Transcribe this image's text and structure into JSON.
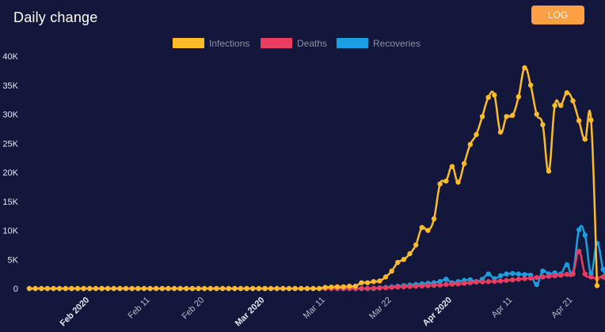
{
  "header": {
    "title": "Daily change",
    "log_button_label": "LOG"
  },
  "chart_data": {
    "type": "line",
    "x_start": "2020-01-22",
    "xlabel": "",
    "ylabel": "",
    "ylim": [
      0,
      40000
    ],
    "y_ticks": [
      0,
      5000,
      10000,
      15000,
      20000,
      25000,
      30000,
      35000,
      40000
    ],
    "y_tick_labels": [
      "0",
      "5K",
      "10K",
      "15K",
      "20K",
      "25K",
      "30K",
      "35K",
      "40K"
    ],
    "x_ticks": [
      {
        "label": "Feb 2020",
        "date": "2020-02-01",
        "major": true
      },
      {
        "label": "Feb 11",
        "date": "2020-02-11",
        "major": false
      },
      {
        "label": "Feb 20",
        "date": "2020-02-20",
        "major": false
      },
      {
        "label": "Mar 2020",
        "date": "2020-03-01",
        "major": true
      },
      {
        "label": "Mar 11",
        "date": "2020-03-11",
        "major": false
      },
      {
        "label": "Mar 22",
        "date": "2020-03-22",
        "major": false
      },
      {
        "label": "Apr 2020",
        "date": "2020-04-01",
        "major": true
      },
      {
        "label": "Apr 11",
        "date": "2020-04-11",
        "major": false
      },
      {
        "label": "Apr 21",
        "date": "2020-04-21",
        "major": false
      }
    ],
    "legend_position": "top-center",
    "grid": false,
    "series": [
      {
        "name": "Infections",
        "color": "#ffbb2a",
        "values": [
          0,
          0,
          0,
          0,
          0,
          0,
          0,
          0,
          0,
          0,
          0,
          0,
          0,
          0,
          0,
          0,
          0,
          0,
          0,
          0,
          0,
          0,
          0,
          0,
          0,
          0,
          0,
          0,
          0,
          0,
          0,
          0,
          0,
          0,
          0,
          0,
          0,
          0,
          0,
          0,
          0,
          0,
          0,
          0,
          0,
          0,
          0,
          0,
          0,
          200,
          250,
          300,
          300,
          400,
          400,
          1000,
          1000,
          1200,
          1300,
          2000,
          3000,
          4500,
          5000,
          6000,
          7500,
          10500,
          10000,
          12000,
          18000,
          18500,
          21000,
          18300,
          21500,
          24800,
          26500,
          29600,
          32900,
          33300,
          26900,
          29600,
          29800,
          33000,
          38000,
          35000,
          30000,
          28200,
          20200,
          31500,
          31500,
          33700,
          32300,
          28900,
          25700,
          29000,
          500
        ]
      },
      {
        "name": "Deaths",
        "color": "#ea3c61",
        "values": [
          0,
          0,
          0,
          0,
          0,
          0,
          0,
          0,
          0,
          0,
          0,
          0,
          0,
          0,
          0,
          0,
          0,
          0,
          0,
          0,
          0,
          0,
          0,
          0,
          0,
          0,
          0,
          0,
          0,
          0,
          0,
          0,
          0,
          0,
          0,
          0,
          0,
          0,
          0,
          0,
          0,
          0,
          0,
          0,
          0,
          0,
          0,
          0,
          0,
          0,
          0,
          0,
          0,
          0,
          0,
          0,
          0,
          50,
          100,
          150,
          200,
          250,
          300,
          350,
          400,
          450,
          500,
          550,
          600,
          700,
          750,
          800,
          900,
          1000,
          1100,
          1150,
          1200,
          1250,
          1300,
          1400,
          1500,
          1600,
          1700,
          1800,
          1900,
          2000,
          2100,
          2200,
          2300,
          2450,
          2500,
          6400,
          2500,
          2000,
          1700,
          2000,
          200
        ]
      },
      {
        "name": "Recoveries",
        "color": "#1a9fe0",
        "values": [
          0,
          0,
          0,
          0,
          0,
          0,
          0,
          0,
          0,
          0,
          0,
          0,
          0,
          0,
          0,
          0,
          0,
          0,
          0,
          0,
          0,
          0,
          0,
          0,
          0,
          0,
          0,
          0,
          0,
          0,
          0,
          0,
          0,
          0,
          0,
          0,
          0,
          0,
          0,
          0,
          0,
          0,
          0,
          0,
          0,
          0,
          0,
          0,
          0,
          0,
          0,
          0,
          0,
          0,
          0,
          0,
          0,
          0,
          100,
          200,
          300,
          400,
          500,
          600,
          700,
          800,
          900,
          1000,
          1200,
          1600,
          1000,
          1200,
          1400,
          1500,
          1200,
          1600,
          2500,
          1700,
          2200,
          2500,
          2600,
          2500,
          2400,
          2300,
          700,
          3000,
          2500,
          2700,
          2500,
          4100,
          2600,
          10100,
          9200,
          2600,
          7800,
          3300,
          800,
          0
        ]
      }
    ]
  }
}
